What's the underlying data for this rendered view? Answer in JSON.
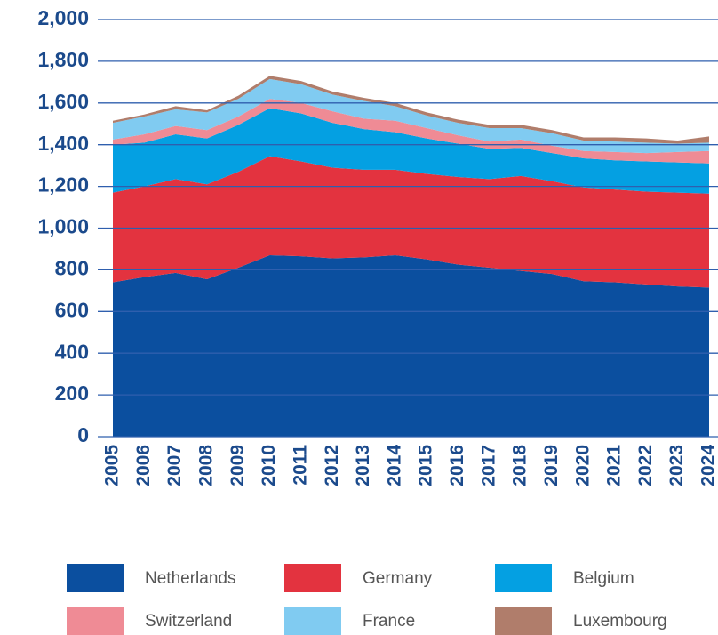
{
  "chart_data": {
    "type": "stacked_area",
    "categories": [
      "2005",
      "2006",
      "2007",
      "2008",
      "2009",
      "2010",
      "2011",
      "2012",
      "2013",
      "2014",
      "2015",
      "2016",
      "2017",
      "2018",
      "2019",
      "2020",
      "2021",
      "2022",
      "2023",
      "2024"
    ],
    "series": [
      {
        "name": "Netherlands",
        "color": "#0b4f9f",
        "values": [
          740,
          765,
          785,
          755,
          810,
          870,
          865,
          855,
          860,
          870,
          850,
          825,
          810,
          795,
          780,
          745,
          740,
          730,
          720,
          715
        ]
      },
      {
        "name": "Germany",
        "color": "#e3333f",
        "values": [
          430,
          435,
          450,
          455,
          460,
          475,
          455,
          435,
          420,
          410,
          410,
          420,
          425,
          455,
          445,
          450,
          445,
          445,
          450,
          450
        ]
      },
      {
        "name": "Belgium",
        "color": "#04a0e2",
        "values": [
          230,
          210,
          215,
          220,
          225,
          230,
          230,
          215,
          195,
          180,
          170,
          160,
          145,
          135,
          135,
          140,
          140,
          145,
          145,
          145
        ]
      },
      {
        "name": "Switzerland",
        "color": "#ef8b95",
        "values": [
          25,
          40,
          40,
          40,
          40,
          45,
          50,
          55,
          50,
          55,
          50,
          40,
          35,
          40,
          35,
          35,
          40,
          40,
          50,
          60
        ]
      },
      {
        "name": "France",
        "color": "#80cbf1",
        "values": [
          80,
          85,
          80,
          85,
          85,
          95,
          90,
          80,
          85,
          70,
          60,
          60,
          65,
          55,
          60,
          50,
          50,
          50,
          40,
          40
        ]
      },
      {
        "name": "Luxembourg",
        "color": "#b07d6b",
        "values": [
          10,
          10,
          15,
          10,
          15,
          15,
          15,
          15,
          15,
          15,
          15,
          15,
          15,
          15,
          15,
          15,
          20,
          20,
          15,
          30
        ]
      }
    ],
    "ylim": [
      0,
      2000
    ],
    "yticks": [
      0,
      200,
      400,
      600,
      800,
      {
        "value": 1000,
        "label": "1,000"
      },
      {
        "value": 1200,
        "label": "1,200"
      },
      {
        "value": 1400,
        "label": "1,400"
      },
      {
        "value": 1600,
        "label": "1,600"
      },
      {
        "value": 1800,
        "label": "1,800"
      },
      {
        "value": 2000,
        "label": "2,000"
      }
    ],
    "grid": true,
    "legend": "bottom"
  }
}
